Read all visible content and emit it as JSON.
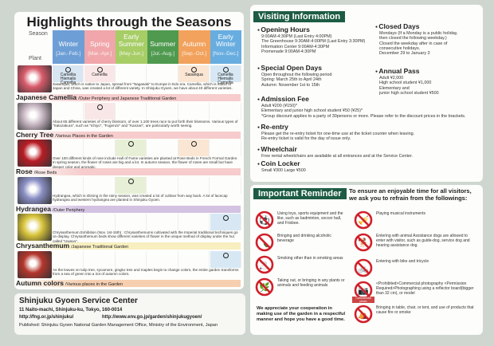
{
  "left": {
    "title": "Highlights through the Seasons",
    "season_label": "Season",
    "plant_label": "Plant",
    "seasons": [
      {
        "name": "Winter",
        "months": "[Jan.-Feb.]",
        "color": "#6d9fd6"
      },
      {
        "name": "Spring",
        "months": "[Mar.-Apr.]",
        "color": "#f0a6aa"
      },
      {
        "name": "Early Summer",
        "months": "[May-Jun.]",
        "color": "#a7cd66"
      },
      {
        "name": "Summer",
        "months": "[Jul.-Aug.]",
        "color": "#4f9a4f"
      },
      {
        "name": "Autumn",
        "months": "[Sep.-Oct.]",
        "color": "#f2a25c"
      },
      {
        "name": "Early Winter",
        "months": "[Nov.-Dec.]",
        "color": "#68ade0"
      }
    ],
    "plants": [
      {
        "name": "Japanese Camellia",
        "location": "/Outer Periphery and Japanese Traditional Garden",
        "bar": "#f6cccc",
        "thumb": "#d85a6a",
        "marks": [
          {
            "col": 0,
            "label": "Camellia Hiemalis Camellia"
          },
          {
            "col": 1,
            "label": "Camellia"
          },
          {
            "col": 4,
            "label": "Sasanqua"
          },
          {
            "col": 5,
            "label": "Camellia Hiemalis Camellia"
          }
        ],
        "description": "Sasanqua, which is native to Japan, spread from \"Nagasaki\" to Europe in Edo era. Camellia, which is native to Japan and China, was created a lot of different variety. In Shinjuku Gyoen, we have about 40 different varieties."
      },
      {
        "name": "Cherry Tree",
        "location": "/Various Places in the Garden",
        "bar": "#f6cccc",
        "thumb": "#c9b8c4",
        "marks": [
          {
            "col": 1,
            "label": ""
          }
        ],
        "description": "About 65 different varieties of cherry blossom, of over 1,100 trees race to put forth their blossoms. Various types of \"Satozakura\", such as \"Ichiyo\", \"Fugenzo\" and \"Kanzan\", are particularly worth seeing."
      },
      {
        "name": "Rose",
        "location": "/Rose Beds",
        "bar": "#f6cccc",
        "thumb": "#b81c24",
        "marks": [
          {
            "col": 2,
            "label": ""
          },
          {
            "col": 4,
            "label": ""
          }
        ],
        "description": "Over 100 different kinds of rose include Hall of Fame varieties are planted at Rose Beds in French Formal Garden. In spring season, the flower of roses are big and a lot. In autumn season, the flower of roses are small but have deeper color and aromatic."
      },
      {
        "name": "Hydrangea",
        "location": "/Outer Periphery",
        "bar": "#d4c2e2",
        "thumb": "#8a8fc4",
        "marks": [
          {
            "col": 2,
            "label": ""
          }
        ],
        "description": "Hydrangea, which is shining in the rainy season, was created a lot of cultivar from way back. A lot of lacecap hydrangea and western hydrangea are planted in Shinjuku Gyoen."
      },
      {
        "name": "Chrysanthemum",
        "location": "/Japanese Traditional Garden",
        "bar": "#f8efc0",
        "thumb": "#d8c43a",
        "marks": [
          {
            "col": 5,
            "label": ""
          }
        ],
        "description": "Chrysanthemum Exhibition (Nov. 1st-15th) : Chrysanthemums cultivated with the Imperial traditional techniques go on display. Chrysanthemum beds show different varieties of flower in the unique method of display under the hut called \"Uwaya\"."
      },
      {
        "name": "Autumn colors",
        "location": "/Various places in the Garden",
        "bar": "#f6cfb0",
        "thumb": "#b4362c",
        "marks": [
          {
            "col": 5,
            "label": ""
          }
        ],
        "description": "As the leaves on tulip tree, sycamore, gingko tree and maples begin to change colors, the entire garden transforms from a sea of green into a riot of autumn colors."
      }
    ]
  },
  "service": {
    "name": "Shinjuku Gyoen Service Center",
    "address": "11 Naito-machi, Shinjuku-ku, Tokyo, 160-0014",
    "url1": "http://fng.or.jp/shinjuku/",
    "url2": "http://www.env.go.jp/garden/shinjukugyoen/",
    "published": "Published: Shinjuku Gyoen National Garden Management Office, Ministry of the Environment, Japan"
  },
  "visiting": {
    "title": "Visiting Information",
    "sections": [
      {
        "heading": "Opening Hours",
        "lines": [
          "9:00AM-4:30PM (Last Entry 4:00PM)",
          "The Greenhouse 9:30AM-4:00PM (Last Entry 3:30PM)",
          "Information Center 9:00AM-4:30PM",
          "Promenade 9:00AM-4:30PM"
        ]
      },
      {
        "heading": "Special Open Days",
        "lines": [
          "Open throughout the following period",
          "Spring: March 25th to April 24th",
          "Autumn: November 1st to 15th"
        ]
      },
      {
        "heading": "Admission Fee",
        "lines": [
          "Adult ¥200 (¥150)*",
          "Elementary and junior high school student ¥50 (¥25)*",
          " *Group discount applies to a party of 30persons or more. Please refer to the discount prices in the brackets."
        ]
      },
      {
        "heading": "Re-entry",
        "lines": [
          "Please get the re-entry ticket for one-time use at the ticket counter when leaving.",
          "Re-entry ticket is valid for the day of issue only."
        ]
      },
      {
        "heading": "Wheelchair",
        "lines": [
          "Free rental wheelchairs are available at all entrances and at the Service Center."
        ]
      },
      {
        "heading": "Coin Locker",
        "lines": [
          "Small ¥300 Large ¥500"
        ]
      },
      {
        "heading": "Closed Days",
        "lines": [
          "Mondays (If a Monday is a public holiday,",
          "then closed the following weekday.)",
          "Closed the weekday after in case of",
          "consecutive holidays.",
          "December 29 to January 3"
        ]
      },
      {
        "heading": "Annual Pass",
        "lines": [
          "Adult ¥2,000",
          "High school student ¥1,000",
          "Elementary and",
          "junior high school student ¥500"
        ]
      }
    ]
  },
  "reminder": {
    "title": "Important Reminder",
    "intro": "To ensure an enjoyable time for all visitors, we ask you to refrain from the followings:",
    "items": [
      {
        "icon": "no-toys-icon",
        "glyph": "⚽",
        "text": "Using toys, sports equipment and the like, such as badminton, soccer ball, and Frisbee."
      },
      {
        "icon": "no-alcohol-icon",
        "glyph": "🍾",
        "text": "Bringing and drinking alcoholic beverage"
      },
      {
        "icon": "no-smoking-icon",
        "glyph": "🚬",
        "text": "Smoking other than in smoking areas"
      },
      {
        "icon": "no-plants-animals-icon",
        "glyph": "🌿",
        "text": "Taking out, or bringing in any plants or animals and feeding animals"
      },
      {
        "icon": "no-music-icon",
        "glyph": "🎺",
        "text": "Playing musical instruments"
      },
      {
        "icon": "no-dogs-icon",
        "glyph": "🐕",
        "text": "Entering with animal Assistance dogs are allowed to enter with visitor, such as guide-dog, service dog and hearing assistance dog."
      },
      {
        "icon": "no-bicycle-icon",
        "glyph": "🚲",
        "text": "Entering with bike and tricycle"
      },
      {
        "icon": "no-camera-icon",
        "glyph": "📷",
        "text": "<Prohibited>Commercial photography <Permission Required>Photographing using a reflector board(bigger than 32 cm), or model",
        "badge": "Commercial photo"
      },
      {
        "icon": "no-tent-icon",
        "glyph": "⛺",
        "text": "Bringing in table, chair, or tent, and use of products that cause fire or smoke"
      }
    ],
    "closing": "We appreciate your cooperation in making use of the garden in a respectful manner and hope you have a good time."
  }
}
